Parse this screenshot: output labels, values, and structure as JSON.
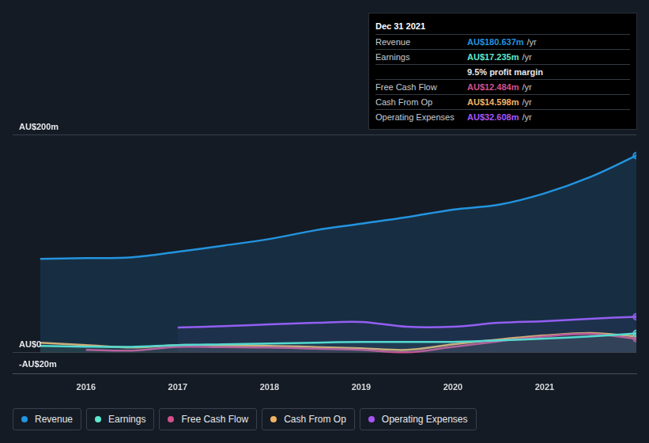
{
  "chart_data": {
    "type": "line",
    "x": [
      2015.5,
      2016,
      2016.5,
      2017,
      2017.5,
      2018,
      2018.5,
      2019,
      2019.5,
      2020,
      2020.5,
      2021,
      2021.5,
      2022
    ],
    "series": [
      {
        "name": "Revenue",
        "color": "#2394df",
        "values": [
          85.7,
          86.4,
          87.2,
          92.3,
          98,
          104,
          112,
          118,
          124,
          131,
          135.5,
          146,
          161,
          180.637
        ]
      },
      {
        "name": "Earnings",
        "color": "#5ee8cf",
        "values": [
          5.9,
          5.1,
          5,
          6.6,
          7.3,
          8,
          8.8,
          9.5,
          9.5,
          9.5,
          11,
          12.5,
          14.6,
          17.235
        ]
      },
      {
        "name": "Free Cash Flow",
        "color": "#d4508c",
        "values": [
          null,
          2.2,
          1.5,
          5,
          4.7,
          4.4,
          3.3,
          2.2,
          0,
          5,
          10,
          14.6,
          16.8,
          12.484
        ]
      },
      {
        "name": "Cash From Op",
        "color": "#f0b264",
        "values": [
          8.8,
          6.6,
          4.4,
          6.6,
          6.2,
          5.9,
          4.8,
          3.7,
          2.2,
          7.3,
          11.7,
          15.4,
          17.6,
          14.598
        ]
      },
      {
        "name": "Operating Expenses",
        "color": "#a855f7",
        "values": [
          null,
          null,
          null,
          22.7,
          24,
          25.6,
          27,
          27.8,
          23.4,
          23.4,
          27,
          28.6,
          30.8,
          32.608
        ]
      }
    ],
    "xlim": [
      2015.2,
      2022
    ],
    "xticks": [
      2016,
      2017,
      2018,
      2019,
      2020,
      2021
    ],
    "ylim": [
      -20,
      200
    ],
    "yticks": [
      {
        "value": -20,
        "label": "-AU$20m"
      },
      {
        "value": 0,
        "label": "AU$0"
      },
      {
        "value": 200,
        "label": "AU$200m"
      }
    ],
    "grid": true,
    "legend": "bottom",
    "info_box": {
      "title": "Dec 31 2021",
      "rows": [
        {
          "label": "Revenue",
          "value": "AU$180.637m",
          "suffix": "/yr",
          "color": "#2394df"
        },
        {
          "label": "Earnings",
          "value": "AU$17.235m",
          "suffix": "/yr",
          "color": "#5ee8cf"
        },
        {
          "value": "9.5% profit margin",
          "color": "#e6e8eb"
        },
        {
          "label": "Free Cash Flow",
          "value": "AU$12.484m",
          "suffix": "/yr",
          "color": "#d4508c"
        },
        {
          "label": "Cash From Op",
          "value": "AU$14.598m",
          "suffix": "/yr",
          "color": "#f0b264"
        },
        {
          "label": "Operating Expenses",
          "value": "AU$32.608m",
          "suffix": "/yr",
          "color": "#a855f7"
        }
      ]
    }
  }
}
